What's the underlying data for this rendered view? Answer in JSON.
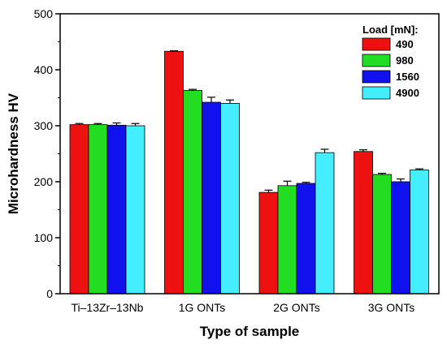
{
  "chart_data": {
    "type": "bar",
    "title": "",
    "xlabel": "Type of sample",
    "ylabel": "Microhardness HV",
    "ylim": [
      0,
      500
    ],
    "yticks": [
      "0",
      "100",
      "200",
      "300",
      "400",
      "500"
    ],
    "categories": [
      "Ti–13Zr–13Nb",
      "1G ONTs",
      "2G ONTs",
      "3G ONTs"
    ],
    "legend_title": "Load [mN]:",
    "legend_position": "top-right",
    "grid": false,
    "error_bars": true,
    "series": [
      {
        "name": "490",
        "color": "#ee1111",
        "values": [
          302,
          433,
          181,
          254
        ],
        "errors": [
          2,
          1,
          4,
          3
        ]
      },
      {
        "name": "980",
        "color": "#22dd22",
        "values": [
          302,
          363,
          193,
          213
        ],
        "errors": [
          2,
          2,
          8,
          2
        ]
      },
      {
        "name": "1560",
        "color": "#1111ee",
        "values": [
          301,
          342,
          197,
          200
        ],
        "errors": [
          4,
          9,
          2,
          5
        ]
      },
      {
        "name": "4900",
        "color": "#44eeff",
        "values": [
          300,
          340,
          252,
          221
        ],
        "errors": [
          4,
          6,
          6,
          2
        ]
      }
    ]
  }
}
